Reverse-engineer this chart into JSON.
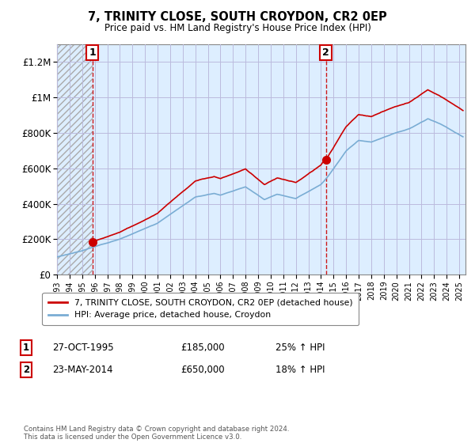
{
  "title": "7, TRINITY CLOSE, SOUTH CROYDON, CR2 0EP",
  "subtitle": "Price paid vs. HM Land Registry's House Price Index (HPI)",
  "legend_line1": "7, TRINITY CLOSE, SOUTH CROYDON, CR2 0EP (detached house)",
  "legend_line2": "HPI: Average price, detached house, Croydon",
  "annotation1_label": "1",
  "annotation1_date": "27-OCT-1995",
  "annotation1_price": "£185,000",
  "annotation1_hpi": "25% ↑ HPI",
  "annotation2_label": "2",
  "annotation2_date": "23-MAY-2014",
  "annotation2_price": "£650,000",
  "annotation2_hpi": "18% ↑ HPI",
  "footer": "Contains HM Land Registry data © Crown copyright and database right 2024.\nThis data is licensed under the Open Government Licence v3.0.",
  "red_line_color": "#cc0000",
  "blue_line_color": "#7aadd4",
  "bg_color": "#ddeeff",
  "hatch_color": "#bbbbbb",
  "grid_color": "#bbbbdd",
  "ylim": [
    0,
    1300000
  ],
  "yticks": [
    0,
    200000,
    400000,
    600000,
    800000,
    1000000,
    1200000
  ],
  "ytick_labels": [
    "£0",
    "£200K",
    "£400K",
    "£600K",
    "£800K",
    "£1M",
    "£1.2M"
  ],
  "sale1_x": 1995.83,
  "sale1_y": 185000,
  "sale2_x": 2014.39,
  "sale2_y": 650000,
  "xmin": 1993,
  "xmax": 2025.5
}
